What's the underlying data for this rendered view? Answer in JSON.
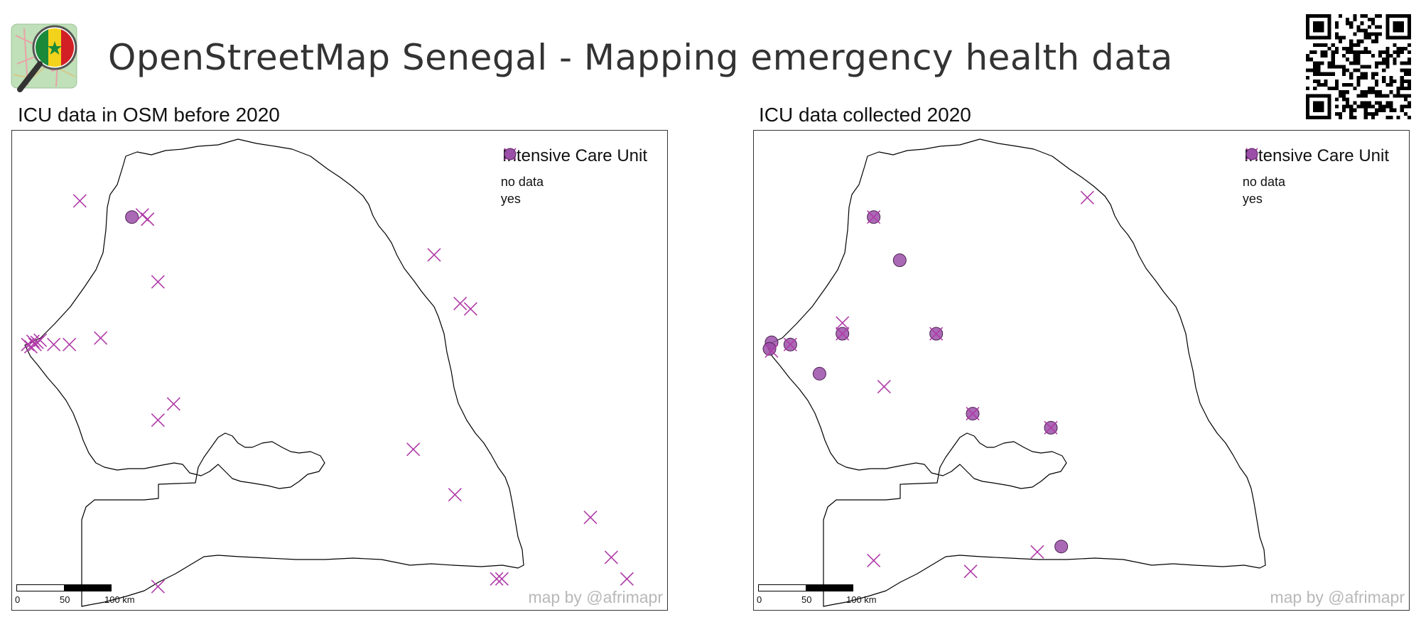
{
  "header": {
    "title": "OpenStreetMap Senegal - Mapping emergency health data",
    "logo_icon": "osm-senegal-magnifier-logo-icon",
    "qr_icon": "qr-code-icon"
  },
  "legend": {
    "title": "Intensive Care Unit",
    "items": [
      {
        "label": "no data",
        "symbol": "x-cross",
        "color": "#b03aa8"
      },
      {
        "label": "yes",
        "symbol": "circle",
        "color": "#9b4fa8"
      }
    ]
  },
  "scalebar": {
    "ticks": [
      "0",
      "50",
      "100 km"
    ]
  },
  "credit": "map by @afrimapr",
  "colors": {
    "cross": "#b03aa8",
    "circle_fill": "#9b4fa8",
    "outline": "#000000"
  },
  "panels": [
    {
      "title": "ICU data in OSM before 2020",
      "points": [
        {
          "lon": -16.95,
          "lat": 16.05,
          "value": "no data"
        },
        {
          "lon": -16.45,
          "lat": 15.9,
          "value": "yes"
        },
        {
          "lon": -16.35,
          "lat": 15.92,
          "value": "no data"
        },
        {
          "lon": -16.3,
          "lat": 15.88,
          "value": "no data"
        },
        {
          "lon": -13.55,
          "lat": 15.55,
          "value": "no data"
        },
        {
          "lon": -13.3,
          "lat": 15.1,
          "value": "no data"
        },
        {
          "lon": -13.2,
          "lat": 15.05,
          "value": "no data"
        },
        {
          "lon": -16.2,
          "lat": 15.3,
          "value": "no data"
        },
        {
          "lon": -17.45,
          "lat": 14.72,
          "value": "no data"
        },
        {
          "lon": -17.42,
          "lat": 14.7,
          "value": "no data"
        },
        {
          "lon": -17.4,
          "lat": 14.75,
          "value": "no data"
        },
        {
          "lon": -17.38,
          "lat": 14.72,
          "value": "no data"
        },
        {
          "lon": -17.36,
          "lat": 14.74,
          "value": "no data"
        },
        {
          "lon": -17.33,
          "lat": 14.76,
          "value": "no data"
        },
        {
          "lon": -17.2,
          "lat": 14.72,
          "value": "no data"
        },
        {
          "lon": -17.05,
          "lat": 14.72,
          "value": "no data"
        },
        {
          "lon": -16.75,
          "lat": 14.78,
          "value": "no data"
        },
        {
          "lon": -16.05,
          "lat": 14.17,
          "value": "no data"
        },
        {
          "lon": -16.2,
          "lat": 14.02,
          "value": "no data"
        },
        {
          "lon": -13.75,
          "lat": 13.75,
          "value": "no data"
        },
        {
          "lon": -13.35,
          "lat": 13.33,
          "value": "no data"
        },
        {
          "lon": -12.05,
          "lat": 13.12,
          "value": "no data"
        },
        {
          "lon": -11.85,
          "lat": 12.75,
          "value": "no data"
        },
        {
          "lon": -11.7,
          "lat": 12.55,
          "value": "no data"
        },
        {
          "lon": -12.95,
          "lat": 12.55,
          "value": "no data"
        },
        {
          "lon": -12.9,
          "lat": 12.55,
          "value": "no data"
        },
        {
          "lon": -16.2,
          "lat": 12.48,
          "value": "no data"
        }
      ]
    },
    {
      "title": "ICU data collected 2020",
      "points": [
        {
          "lon": -14.4,
          "lat": 16.08,
          "value": "no data"
        },
        {
          "lon": -16.45,
          "lat": 15.9,
          "value": "no data"
        },
        {
          "lon": -16.45,
          "lat": 15.9,
          "value": "yes"
        },
        {
          "lon": -16.2,
          "lat": 15.5,
          "value": "yes"
        },
        {
          "lon": -16.75,
          "lat": 14.92,
          "value": "no data"
        },
        {
          "lon": -16.75,
          "lat": 14.82,
          "value": "no data"
        },
        {
          "lon": -16.75,
          "lat": 14.82,
          "value": "yes"
        },
        {
          "lon": -15.85,
          "lat": 14.82,
          "value": "no data"
        },
        {
          "lon": -15.85,
          "lat": 14.82,
          "value": "yes"
        },
        {
          "lon": -17.43,
          "lat": 14.74,
          "value": "yes"
        },
        {
          "lon": -17.45,
          "lat": 14.68,
          "value": "yes"
        },
        {
          "lon": -17.43,
          "lat": 14.66,
          "value": "no data"
        },
        {
          "lon": -17.25,
          "lat": 14.72,
          "value": "no data"
        },
        {
          "lon": -17.25,
          "lat": 14.72,
          "value": "yes"
        },
        {
          "lon": -16.97,
          "lat": 14.45,
          "value": "yes"
        },
        {
          "lon": -16.35,
          "lat": 14.33,
          "value": "no data"
        },
        {
          "lon": -15.5,
          "lat": 14.08,
          "value": "no data"
        },
        {
          "lon": -15.5,
          "lat": 14.08,
          "value": "yes"
        },
        {
          "lon": -14.75,
          "lat": 13.95,
          "value": "no data"
        },
        {
          "lon": -14.75,
          "lat": 13.95,
          "value": "yes"
        },
        {
          "lon": -14.65,
          "lat": 12.85,
          "value": "yes"
        },
        {
          "lon": -14.88,
          "lat": 12.8,
          "value": "no data"
        },
        {
          "lon": -16.45,
          "lat": 12.72,
          "value": "no data"
        },
        {
          "lon": -15.52,
          "lat": 12.62,
          "value": "no data"
        }
      ]
    }
  ]
}
